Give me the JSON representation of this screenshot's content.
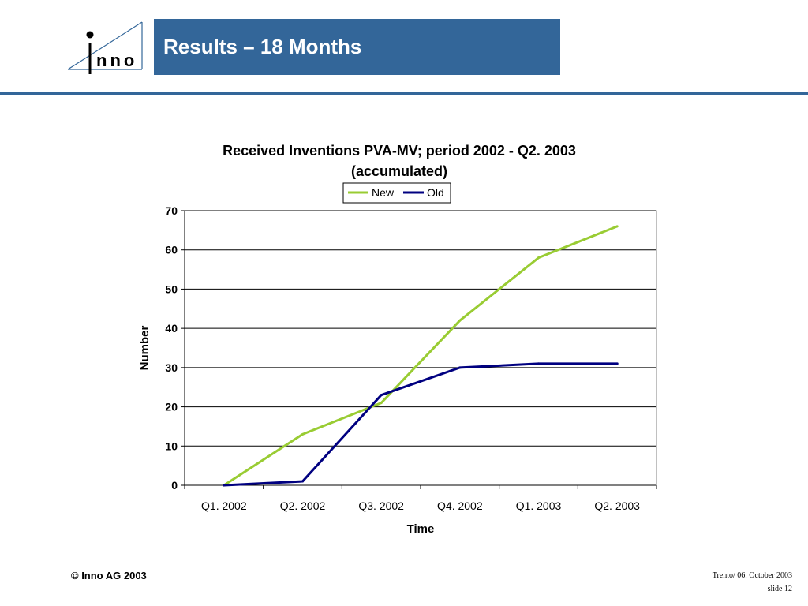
{
  "header": {
    "logo_text": "Inno",
    "title": "Results – 18 Months"
  },
  "colors": {
    "brand_blue": "#336699",
    "series_new": "#99CC33",
    "series_old": "#000080"
  },
  "chart_data": {
    "type": "line",
    "title_line1": "Received Inventions PVA-MV; period 2002 - Q2. 2003",
    "title_line2": "(accumulated)",
    "xlabel": "Time",
    "ylabel": "Number",
    "categories": [
      "Q1. 2002",
      "Q2. 2002",
      "Q3. 2002",
      "Q4. 2002",
      "Q1. 2003",
      "Q2. 2003"
    ],
    "ylim": [
      0,
      70
    ],
    "yticks": [
      0,
      10,
      20,
      30,
      40,
      50,
      60,
      70
    ],
    "grid": true,
    "legend_position": "top-center",
    "series": [
      {
        "name": "New",
        "color": "#99CC33",
        "values": [
          0,
          13,
          21,
          42,
          58,
          66
        ]
      },
      {
        "name": "Old",
        "color": "#000080",
        "values": [
          0,
          1,
          23,
          30,
          31,
          31
        ]
      }
    ]
  },
  "footer": {
    "copyright": "© Inno AG 2003",
    "location_date": "Trento/ 06. October 2003",
    "slide": "slide 12"
  }
}
